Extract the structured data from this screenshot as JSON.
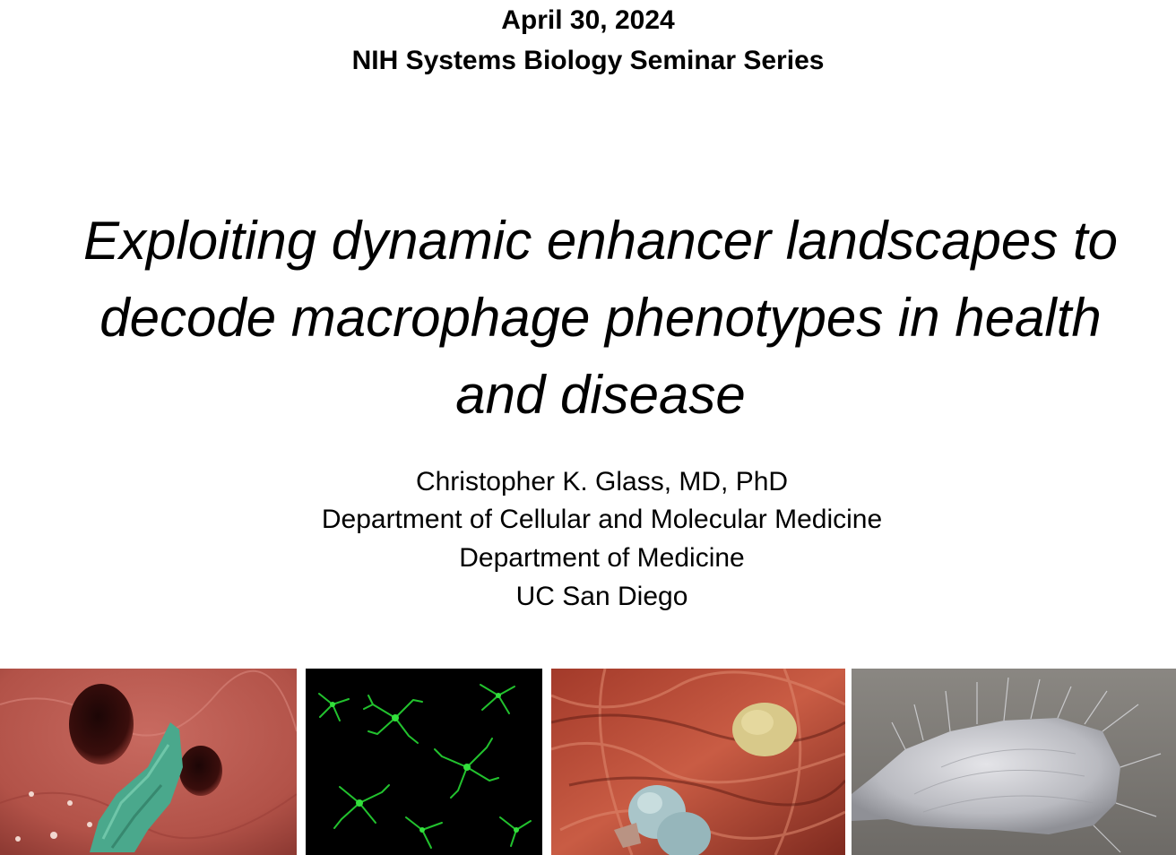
{
  "header": {
    "date": "April 30, 2024",
    "series": "NIH Systems Biology Seminar Series"
  },
  "title": {
    "lines": [
      "Exploiting dynamic enhancer landscapes to",
      "decode macrophage phenotypes in health",
      "and disease"
    ]
  },
  "presenter": {
    "name": "Christopher K. Glass, MD, PhD",
    "department_1": "Department of Cellular and Molecular Medicine",
    "department_2": "Department of Medicine",
    "institution": "UC San Diego"
  },
  "images": [
    {
      "subject": "macrophage-sem-icon"
    },
    {
      "subject": "microglia-fluorescence-icon"
    },
    {
      "subject": "tissue-macrophages-sem-icon"
    },
    {
      "subject": "macrophage-spread-sem-icon"
    }
  ],
  "colors": {
    "text": "#000000",
    "background": "#ffffff",
    "sem_red": "#b5524a",
    "cell_teal": "#4aa88c",
    "microglia_green": "#22c22e"
  }
}
